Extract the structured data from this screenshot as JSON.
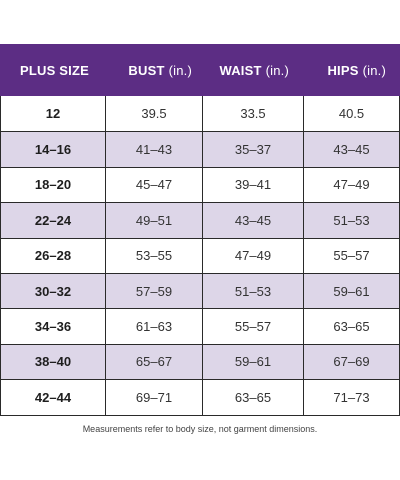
{
  "table": {
    "headers": {
      "size": "PLUS SIZE",
      "bust": "BUST",
      "bust_unit": "(in.)",
      "waist": "WAIST",
      "waist_unit": "(in.)",
      "hips": "HIPS",
      "hips_unit": "(in.)"
    },
    "rows": [
      {
        "size": "12",
        "bust": "39.5",
        "waist": "33.5",
        "hips": "40.5"
      },
      {
        "size": "14–16",
        "bust": "41–43",
        "waist": "35–37",
        "hips": "43–45"
      },
      {
        "size": "18–20",
        "bust": "45–47",
        "waist": "39–41",
        "hips": "47–49"
      },
      {
        "size": "22–24",
        "bust": "49–51",
        "waist": "43–45",
        "hips": "51–53"
      },
      {
        "size": "26–28",
        "bust": "53–55",
        "waist": "47–49",
        "hips": "55–57"
      },
      {
        "size": "30–32",
        "bust": "57–59",
        "waist": "51–53",
        "hips": "59–61"
      },
      {
        "size": "34–36",
        "bust": "61–63",
        "waist": "55–57",
        "hips": "63–65"
      },
      {
        "size": "38–40",
        "bust": "65–67",
        "waist": "59–61",
        "hips": "67–69"
      },
      {
        "size": "42–44",
        "bust": "69–71",
        "waist": "63–65",
        "hips": "71–73"
      }
    ]
  },
  "note": "Measurements refer to body size, not garment dimensions.",
  "colors": {
    "header_bg": "#5c2d84",
    "shaded_row": "#ddd6e8"
  }
}
